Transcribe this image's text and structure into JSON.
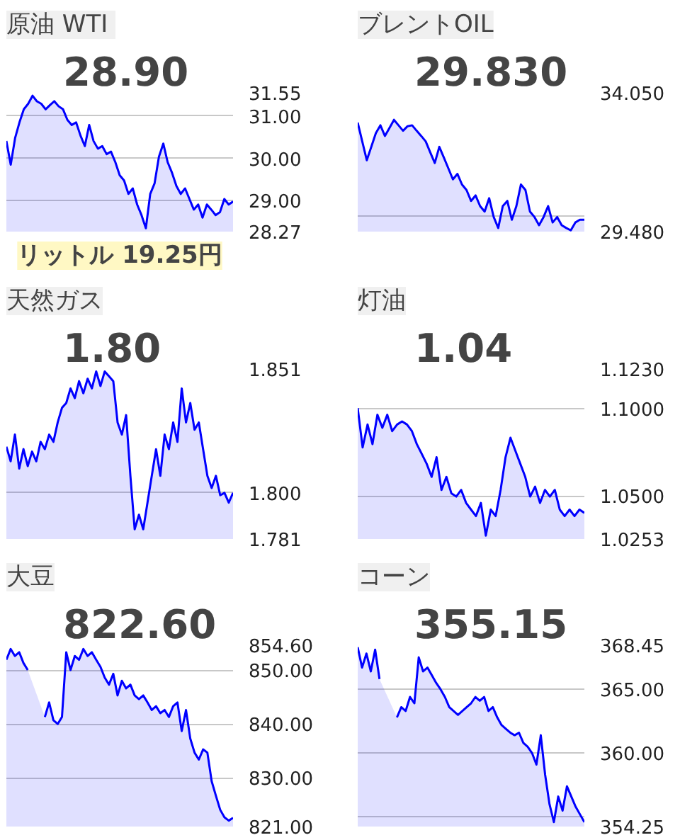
{
  "chart_data": [
    {
      "type": "area",
      "title": "原油",
      "subtitle": "WTI",
      "annotations": [
        "28.90",
        "リットル 19.25円"
      ],
      "grid": "y",
      "categories": [
        null,
        null,
        null,
        null,
        null,
        null,
        null,
        null,
        null,
        null,
        null,
        null,
        null,
        null,
        null,
        null,
        null,
        null,
        null,
        null,
        null,
        null,
        null,
        null,
        null,
        null,
        null,
        null,
        null,
        null,
        null,
        null,
        null,
        null,
        null,
        null,
        null,
        null,
        null,
        null,
        null,
        null,
        null,
        null,
        null,
        null,
        null,
        null,
        null,
        null,
        null,
        null,
        null
      ],
      "series": [
        {
          "color": "#0000ff",
          "values": [
            30.41,
            29.85,
            30.48,
            30.85,
            31.16,
            31.29,
            31.48,
            31.35,
            31.29,
            31.16,
            31.26,
            31.35,
            31.23,
            31.16,
            30.91,
            30.79,
            30.85,
            30.54,
            30.29,
            30.79,
            30.41,
            30.23,
            30.29,
            30.1,
            30.16,
            29.91,
            29.6,
            29.48,
            29.16,
            29.29,
            28.91,
            28.66,
            28.35,
            29.16,
            29.41,
            30.04,
            30.35,
            29.91,
            29.66,
            29.35,
            29.16,
            29.29,
            29.04,
            28.79,
            28.91,
            28.6,
            28.91,
            28.79,
            28.66,
            28.73,
            29.04,
            28.91,
            28.98
          ]
        }
      ],
      "ylim": [
        28.27,
        31.55
      ],
      "yticks": [
        28.27,
        {
          "value": 29,
          "label": "29.00"
        },
        {
          "value": 30,
          "label": "30.00"
        },
        {
          "value": 31,
          "label": "31.00"
        },
        31.55
      ]
    },
    {
      "type": "area",
      "title": "ブレントOIL",
      "annotations": [
        "29.830"
      ],
      "grid": "y",
      "categories": [
        null,
        null,
        null,
        null,
        null,
        null,
        null,
        null,
        null,
        null,
        null,
        null,
        null,
        null,
        null,
        null,
        null,
        null,
        null,
        null,
        null,
        null,
        null,
        null,
        null,
        null,
        null,
        null,
        null,
        null,
        null,
        null,
        null,
        null,
        null,
        null,
        null,
        null,
        null,
        null,
        null,
        null,
        null,
        null,
        null,
        null,
        null,
        null,
        null,
        null,
        null
      ],
      "series": [
        {
          "color": "#0000ff",
          "values": [
            33.07,
            32.45,
            31.83,
            32.27,
            32.72,
            32.98,
            32.63,
            32.89,
            33.16,
            32.98,
            32.8,
            32.95,
            32.98,
            32.8,
            32.63,
            32.45,
            32.09,
            31.74,
            32.27,
            31.92,
            31.56,
            31.2,
            31.38,
            31.03,
            30.85,
            30.49,
            30.67,
            30.32,
            30.14,
            30.58,
            29.96,
            29.6,
            30.32,
            30.49,
            29.87,
            30.32,
            31.03,
            30.85,
            30.14,
            29.96,
            29.69,
            29.96,
            30.32,
            29.78,
            29.96,
            29.69,
            29.6,
            29.52,
            29.78,
            29.87,
            29.87
          ]
        }
      ],
      "ylim": [
        29.48,
        34.05
      ],
      "yticks": [
        {
          "value": 29.48,
          "label": "29.480"
        },
        {
          "value": 30,
          "label": null
        },
        {
          "value": 34.05,
          "label": "34.050"
        }
      ]
    },
    {
      "type": "area",
      "title": "天然ガス",
      "annotations": [
        "1.80"
      ],
      "grid": "y",
      "categories": [
        null,
        null,
        null,
        null,
        null,
        null,
        null,
        null,
        null,
        null,
        null,
        null,
        null,
        null,
        null,
        null,
        null,
        null,
        null,
        null,
        null,
        null,
        null,
        null,
        null,
        null,
        null,
        null,
        null,
        null,
        null,
        null,
        null,
        null,
        null,
        null,
        null,
        null,
        null,
        null,
        null,
        null,
        null,
        null,
        null,
        null,
        null,
        null,
        null,
        null,
        null,
        null,
        null,
        null
      ],
      "series": [
        {
          "color": "#0000ff",
          "values": [
            1.819,
            1.813,
            1.824,
            1.81,
            1.818,
            1.811,
            1.817,
            1.813,
            1.821,
            1.818,
            1.824,
            1.821,
            1.829,
            1.835,
            1.837,
            1.843,
            1.839,
            1.846,
            1.841,
            1.847,
            1.843,
            1.85,
            1.844,
            1.85,
            1.848,
            1.846,
            1.829,
            1.824,
            1.832,
            1.807,
            1.785,
            1.791,
            1.785,
            1.796,
            1.807,
            1.818,
            1.807,
            1.824,
            1.818,
            1.829,
            1.821,
            1.843,
            1.829,
            1.837,
            1.826,
            1.829,
            1.818,
            1.807,
            1.802,
            1.807,
            1.799,
            1.8,
            1.796,
            1.8
          ]
        }
      ],
      "ylim": [
        1.781,
        1.851
      ],
      "yticks": [
        1.781,
        {
          "value": 1.8,
          "label": "1.800"
        },
        1.851
      ]
    },
    {
      "type": "area",
      "title": "灯油",
      "annotations": [
        "1.04"
      ],
      "grid": "y",
      "categories": [
        null,
        null,
        null,
        null,
        null,
        null,
        null,
        null,
        null,
        null,
        null,
        null,
        null,
        null,
        null,
        null,
        null,
        null,
        null,
        null,
        null,
        null,
        null,
        null,
        null,
        null,
        null,
        null,
        null,
        null,
        null,
        null,
        null,
        null,
        null,
        null,
        null,
        null,
        null,
        null,
        null,
        null,
        null,
        null,
        null,
        null,
        null
      ],
      "series": [
        {
          "color": "#0000ff",
          "values": [
            1.1005,
            1.0779,
            1.0911,
            1.0798,
            1.0967,
            1.0892,
            1.0967,
            1.0873,
            1.0911,
            1.0929,
            1.0911,
            1.0873,
            1.0798,
            1.0742,
            1.0685,
            1.061,
            1.0723,
            1.0535,
            1.061,
            1.0516,
            1.0497,
            1.0535,
            1.046,
            1.0422,
            1.0385,
            1.046,
            1.0272,
            1.0422,
            1.0385,
            1.0535,
            1.0723,
            1.0835,
            1.076,
            1.0685,
            1.061,
            1.0497,
            1.0554,
            1.046,
            1.0535,
            1.0497,
            1.0535,
            1.0422,
            1.0385,
            1.0422,
            1.0385,
            1.0422,
            1.0403
          ]
        }
      ],
      "ylim": [
        1.0253,
        1.123
      ],
      "yticks": [
        1.0253,
        {
          "value": 1.05,
          "label": "1.0500"
        },
        {
          "value": 1.1,
          "label": "1.1000"
        },
        {
          "value": 1.123,
          "label": "1.1230"
        }
      ]
    },
    {
      "type": "area",
      "title": "大豆",
      "annotations": [
        "822.60"
      ],
      "grid": "y",
      "categories": [
        null,
        null,
        null,
        null,
        null,
        null,
        null,
        null,
        null,
        null,
        null,
        null,
        null,
        null,
        null,
        null,
        null,
        null,
        null,
        null,
        null,
        null,
        null,
        null,
        null,
        null,
        null,
        null,
        null,
        null,
        null,
        null,
        null,
        null,
        null,
        null,
        null,
        null,
        null,
        null,
        null,
        null,
        null,
        null,
        null,
        null,
        null,
        null,
        null,
        null,
        null,
        null,
        null,
        null
      ],
      "series": [
        {
          "color": "#0000ff",
          "values": [
            851.9,
            853.9,
            852.6,
            853.3,
            851.3,
            850.0,
            null,
            null,
            null,
            841.3,
            844.0,
            840.7,
            840.0,
            841.3,
            853.3,
            850.0,
            852.6,
            851.9,
            853.9,
            852.6,
            853.3,
            851.9,
            850.6,
            848.6,
            847.3,
            849.3,
            845.3,
            848.0,
            846.6,
            847.3,
            845.3,
            844.6,
            845.3,
            844.0,
            842.6,
            843.3,
            842.0,
            842.6,
            841.3,
            843.3,
            844.0,
            838.7,
            842.6,
            837.3,
            834.7,
            833.4,
            835.3,
            834.7,
            829.4,
            826.7,
            824.1,
            822.7,
            822.1,
            822.6
          ]
        }
      ],
      "ylim": [
        821,
        854.6
      ],
      "yticks": [
        {
          "value": 821,
          "label": "821.00"
        },
        {
          "value": 830,
          "label": "830.00"
        },
        {
          "value": 840,
          "label": "840.00"
        },
        {
          "value": 850,
          "label": "850.00"
        },
        {
          "value": 854.6,
          "label": "854.60"
        }
      ]
    },
    {
      "type": "area",
      "title": "コーン",
      "annotations": [
        "355.15"
      ],
      "grid": "y",
      "categories": [
        null,
        null,
        null,
        null,
        null,
        null,
        null,
        null,
        null,
        null,
        null,
        null,
        null,
        null,
        null,
        null,
        null,
        null,
        null,
        null,
        null,
        null,
        null,
        null,
        null,
        null,
        null,
        null,
        null,
        null,
        null,
        null,
        null,
        null,
        null,
        null,
        null,
        null,
        null,
        null,
        null,
        null,
        null,
        null,
        null,
        null,
        null,
        null,
        null,
        null,
        null,
        null,
        null
      ],
      "series": [
        {
          "color": "#0000ff",
          "values": [
            368.3,
            366.7,
            367.8,
            366.4,
            368.1,
            365.8,
            null,
            null,
            null,
            362.8,
            363.6,
            363.3,
            364.4,
            363.9,
            367.5,
            366.4,
            366.7,
            366.1,
            365.5,
            365.0,
            364.4,
            363.6,
            363.3,
            363.0,
            363.3,
            363.6,
            363.9,
            364.4,
            364.1,
            364.4,
            363.3,
            363.6,
            362.8,
            362.2,
            361.9,
            361.6,
            361.4,
            361.6,
            360.8,
            360.5,
            360.0,
            359.1,
            361.4,
            358.3,
            356.0,
            354.6,
            356.6,
            355.5,
            357.4,
            356.6,
            355.8,
            355.2,
            354.6
          ]
        }
      ],
      "ylim": [
        354.25,
        368.45
      ],
      "yticks": [
        354.25,
        {
          "value": 355,
          "label": null
        },
        {
          "value": 360,
          "label": "360.00"
        },
        {
          "value": 365,
          "label": "365.00"
        },
        368.45
      ]
    }
  ]
}
